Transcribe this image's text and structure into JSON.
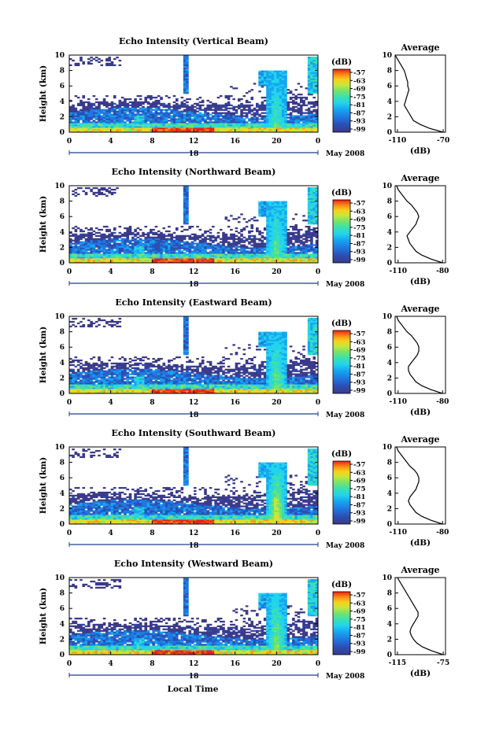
{
  "colors": {
    "scale": [
      "#3a3a8a",
      "#2b4fb4",
      "#1f78e0",
      "#15a6f0",
      "#22d3ee",
      "#3be0b0",
      "#77e36a",
      "#c4e83a",
      "#f6d21e",
      "#fb9a16",
      "#f45414",
      "#e81e14"
    ],
    "line": "#000000"
  },
  "shared": {
    "x_label": "Local Time",
    "date_label": "18",
    "month_label": "May 2008",
    "y_label": "Height (km)",
    "colorbar_unit": "(dB)",
    "colorbar_ticks": [
      "-57",
      "-63",
      "-69",
      "-75",
      "-81",
      "-87",
      "-93",
      "-99"
    ],
    "profile_title": "Average",
    "profile_unit": "(dB)"
  },
  "chart_data": [
    {
      "type": "heatmap",
      "title": "Echo Intensity (Vertical Beam)",
      "x_ticks": [
        "0",
        "4",
        "8",
        "12",
        "16",
        "20",
        "0"
      ],
      "xlim": [
        0,
        24
      ],
      "y_ticks": [
        "0",
        "2",
        "4",
        "6",
        "8",
        "10"
      ],
      "ylim": [
        0,
        10
      ],
      "plume_intensity": 0.35,
      "profile": {
        "x_ticks": [
          "-110",
          "-70"
        ],
        "xlim": [
          -112,
          -68
        ],
        "heights": [
          0,
          0.5,
          1,
          1.5,
          2,
          2.5,
          3,
          3.5,
          4,
          4.5,
          5,
          5.5,
          6,
          6.5,
          7,
          7.5,
          8,
          8.5,
          9,
          9.5,
          10
        ],
        "values": [
          -70,
          -82,
          -90,
          -96,
          -98,
          -100,
          -102,
          -104,
          -103,
          -102,
          -101,
          -100,
          -101,
          -101,
          -102,
          -103,
          -104,
          -106,
          -108,
          -110,
          -112
        ]
      }
    },
    {
      "type": "heatmap",
      "title": "Echo Intensity (Northward Beam)",
      "x_ticks": [
        "0",
        "4",
        "8",
        "12",
        "16",
        "20",
        "0"
      ],
      "xlim": [
        0,
        24
      ],
      "y_ticks": [
        "0",
        "2",
        "4",
        "6",
        "8",
        "10"
      ],
      "ylim": [
        0,
        10
      ],
      "plume_intensity": 0.45,
      "profile": {
        "x_ticks": [
          "-110",
          "-80"
        ],
        "xlim": [
          -112,
          -78
        ],
        "heights": [
          0,
          0.5,
          1,
          1.5,
          2,
          2.5,
          3,
          3.5,
          4,
          4.5,
          5,
          5.5,
          6,
          6.5,
          7,
          7.5,
          8,
          8.5,
          9,
          9.5,
          10
        ],
        "values": [
          -80,
          -88,
          -94,
          -98,
          -100,
          -102,
          -103,
          -104,
          -102,
          -100,
          -98,
          -97,
          -96,
          -97,
          -99,
          -101,
          -104,
          -106,
          -108,
          -110,
          -111
        ]
      }
    },
    {
      "type": "heatmap",
      "title": "Echo Intensity (Eastward Beam)",
      "x_ticks": [
        "0",
        "4",
        "8",
        "12",
        "16",
        "20",
        "0"
      ],
      "xlim": [
        0,
        24
      ],
      "y_ticks": [
        "0",
        "2",
        "4",
        "6",
        "8",
        "10"
      ],
      "ylim": [
        0,
        10
      ],
      "plume_intensity": 0.5,
      "profile": {
        "x_ticks": [
          "-110",
          "-80"
        ],
        "xlim": [
          -112,
          -78
        ],
        "heights": [
          0,
          0.5,
          1,
          1.5,
          2,
          2.5,
          3,
          3.5,
          4,
          4.5,
          5,
          5.5,
          6,
          6.5,
          7,
          7.5,
          8,
          8.5,
          9,
          9.5,
          10
        ],
        "values": [
          -80,
          -88,
          -94,
          -98,
          -100,
          -102,
          -103,
          -103,
          -101,
          -99,
          -97,
          -96,
          -96,
          -97,
          -99,
          -101,
          -104,
          -106,
          -108,
          -110,
          -111
        ]
      }
    },
    {
      "type": "heatmap",
      "title": "Echo Intensity (Southward Beam)",
      "x_ticks": [
        "0",
        "4",
        "8",
        "12",
        "16",
        "20",
        "0"
      ],
      "xlim": [
        0,
        24
      ],
      "y_ticks": [
        "0",
        "2",
        "4",
        "6",
        "8",
        "10"
      ],
      "ylim": [
        0,
        10
      ],
      "plume_intensity": 0.8,
      "profile": {
        "x_ticks": [
          "-110",
          "-80"
        ],
        "xlim": [
          -112,
          -78
        ],
        "heights": [
          0,
          0.5,
          1,
          1.5,
          2,
          2.5,
          3,
          3.5,
          4,
          4.5,
          5,
          5.5,
          6,
          6.5,
          7,
          7.5,
          8,
          8.5,
          9,
          9.5,
          10
        ],
        "values": [
          -80,
          -88,
          -94,
          -98,
          -100,
          -102,
          -103,
          -102,
          -100,
          -98,
          -97,
          -96,
          -96,
          -97,
          -99,
          -102,
          -104,
          -106,
          -108,
          -110,
          -111
        ]
      }
    },
    {
      "type": "heatmap",
      "title": "Echo Intensity (Westward Beam)",
      "x_ticks": [
        "0",
        "4",
        "8",
        "12",
        "16",
        "20",
        "0"
      ],
      "xlim": [
        0,
        24
      ],
      "y_ticks": [
        "0",
        "2",
        "4",
        "6",
        "8",
        "10"
      ],
      "ylim": [
        0,
        10
      ],
      "plume_intensity": 0.6,
      "profile": {
        "x_ticks": [
          "-115",
          "-75"
        ],
        "xlim": [
          -117,
          -73
        ],
        "heights": [
          0,
          0.5,
          1,
          1.5,
          2,
          2.5,
          3,
          3.5,
          4,
          4.5,
          5,
          5.5,
          6,
          6.5,
          7,
          7.5,
          8,
          8.5,
          9,
          9.5,
          10
        ],
        "values": [
          -75,
          -85,
          -93,
          -98,
          -101,
          -103,
          -104,
          -103,
          -101,
          -99,
          -97,
          -97,
          -99,
          -101,
          -103,
          -105,
          -107,
          -109,
          -111,
          -113,
          -115
        ]
      }
    }
  ]
}
